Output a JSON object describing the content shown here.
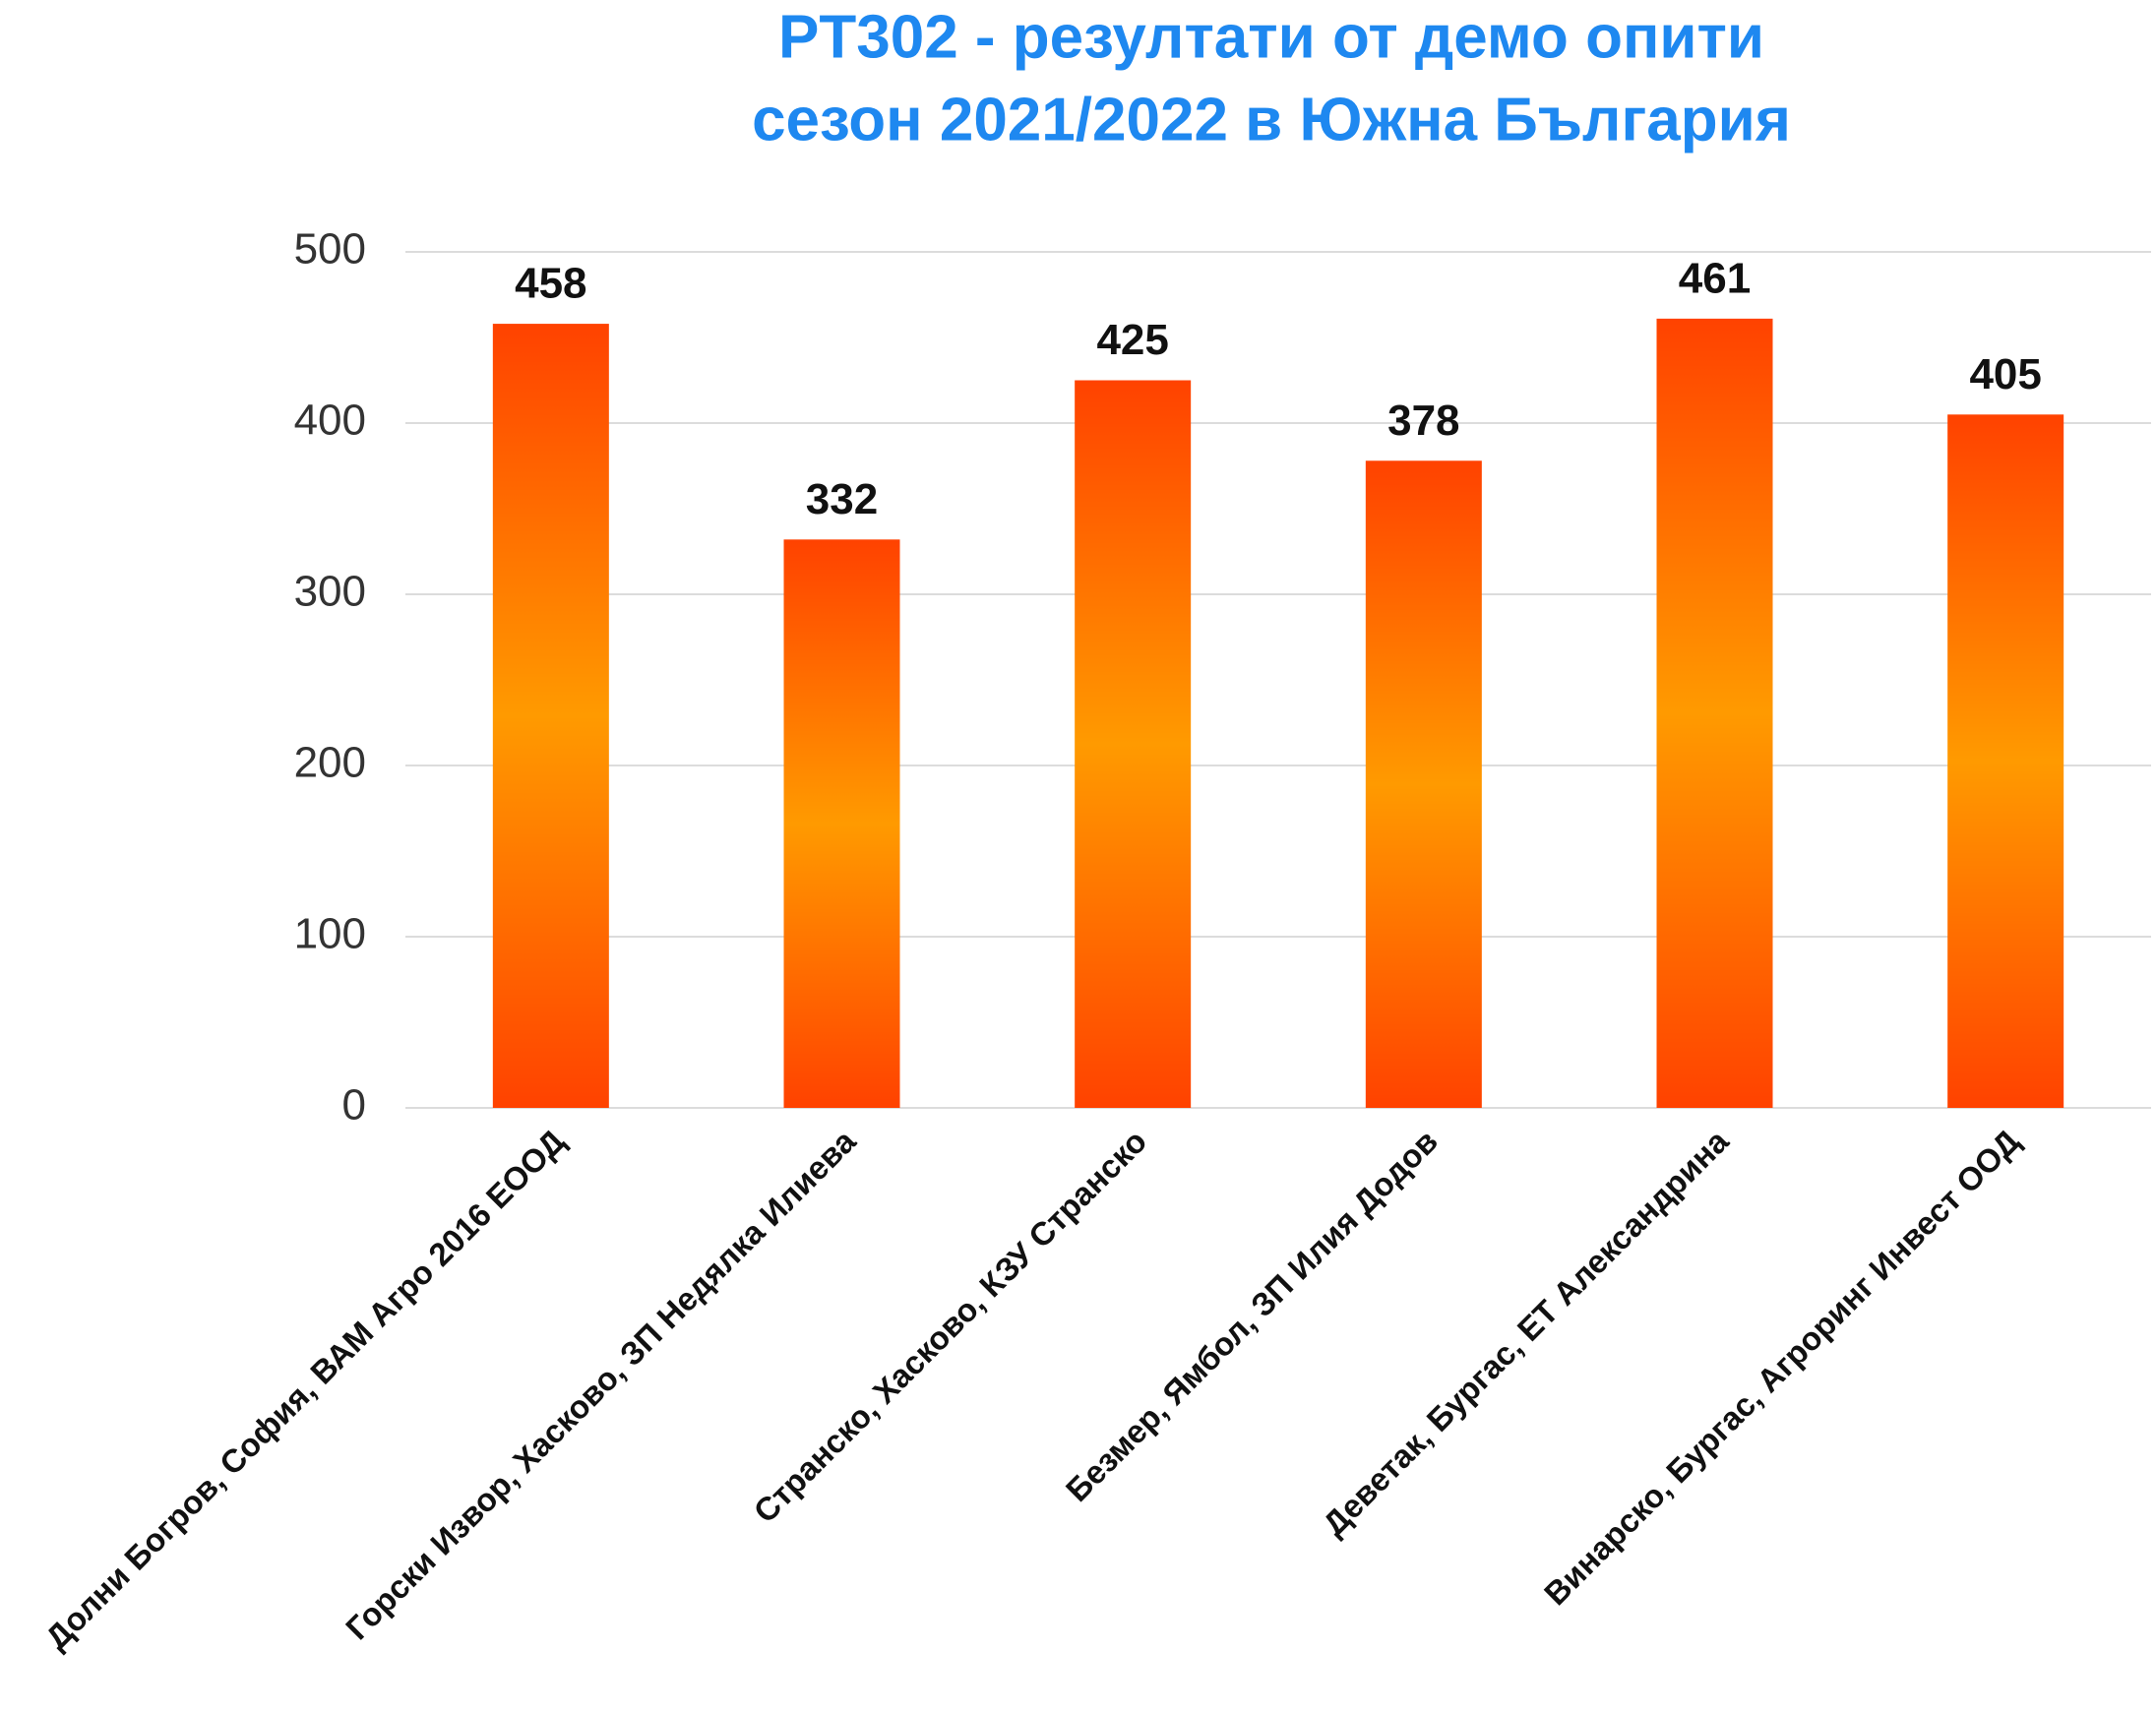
{
  "chart_data": {
    "type": "bar",
    "title": [
      "PT302 - резултати от демо опити",
      "сезон 2021/2022 в Южна България"
    ],
    "categories": [
      "Долни Богров, София, ВАМ Агро 2016 ЕООД",
      "Горски Извор, Хасково, ЗП Недялка Илиева",
      "Странско, Хасково, КЗУ Странско",
      "Безмер, Ямбол, ЗП Илия Додов",
      "Деветак, Бургас, ЕТ Александрина",
      "Винарско, Бургас, Агроринг Инвест ООД"
    ],
    "values": [
      458,
      332,
      425,
      378,
      461,
      405
    ],
    "color": [
      "#ff4200",
      "#ff9a00",
      "#ff4200"
    ],
    "ylim": [
      0,
      500
    ],
    "yticks": [
      0,
      100,
      200,
      300,
      400,
      500
    ],
    "grid": true
  }
}
